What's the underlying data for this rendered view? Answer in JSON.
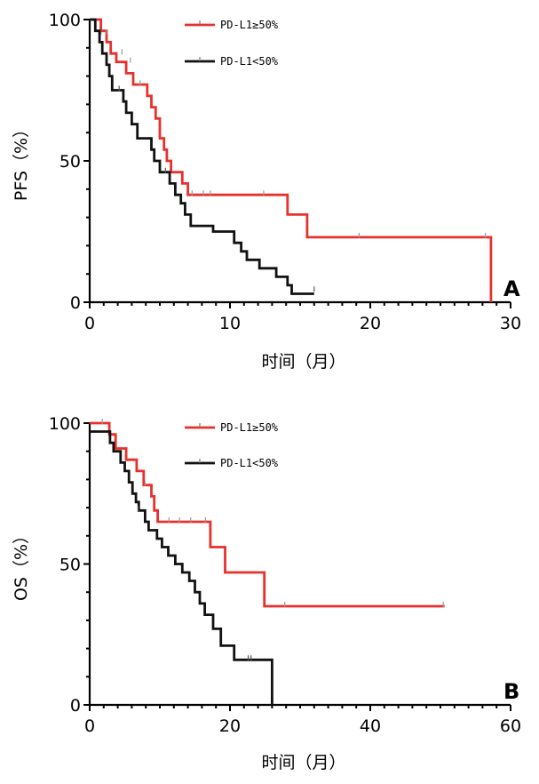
{
  "chart_data": [
    {
      "type": "line",
      "step": true,
      "panel_label": "A",
      "ylabel": "PFS（%）",
      "xlabel": "时间（月）",
      "xlim": [
        0,
        30
      ],
      "ylim": [
        0,
        100
      ],
      "xticks": [
        "0",
        "10",
        "20",
        "30"
      ],
      "yticks": [
        "0",
        "50",
        "100"
      ],
      "legend_position": "top-center",
      "series": [
        {
          "name": "PD-L1≥50%",
          "color": "#e8302c",
          "points": [
            [
              0,
              100
            ],
            [
              0.8,
              100
            ],
            [
              0.8,
              96
            ],
            [
              1.2,
              96
            ],
            [
              1.2,
              92
            ],
            [
              1.5,
              92
            ],
            [
              1.5,
              88
            ],
            [
              1.9,
              88
            ],
            [
              1.9,
              85
            ],
            [
              2.6,
              85
            ],
            [
              2.6,
              81
            ],
            [
              3.1,
              81
            ],
            [
              3.1,
              77
            ],
            [
              4.1,
              77
            ],
            [
              4.1,
              73
            ],
            [
              4.4,
              73
            ],
            [
              4.4,
              69
            ],
            [
              4.7,
              69
            ],
            [
              4.7,
              65
            ],
            [
              5.0,
              65
            ],
            [
              5.0,
              58
            ],
            [
              5.3,
              58
            ],
            [
              5.3,
              54
            ],
            [
              5.5,
              54
            ],
            [
              5.5,
              50
            ],
            [
              5.8,
              50
            ],
            [
              5.8,
              46
            ],
            [
              6.6,
              46
            ],
            [
              6.6,
              42
            ],
            [
              7.0,
              42
            ],
            [
              7.0,
              38
            ],
            [
              14.1,
              38
            ],
            [
              14.1,
              31
            ],
            [
              15.5,
              31
            ],
            [
              15.5,
              23
            ],
            [
              28.6,
              23
            ],
            [
              28.6,
              0
            ]
          ],
          "censors": [
            [
              1.2,
              95
            ],
            [
              2.3,
              88
            ],
            [
              2.9,
              85
            ],
            [
              3.6,
              77
            ],
            [
              7.3,
              38
            ],
            [
              8.1,
              38
            ],
            [
              8.6,
              38
            ],
            [
              12.4,
              38
            ],
            [
              19.2,
              23
            ],
            [
              28.2,
              23
            ]
          ]
        },
        {
          "name": "PD-L1<50%",
          "color": "#111111",
          "points": [
            [
              0,
              100
            ],
            [
              0.4,
              100
            ],
            [
              0.4,
              96
            ],
            [
              0.7,
              96
            ],
            [
              0.7,
              92
            ],
            [
              0.9,
              92
            ],
            [
              0.9,
              88
            ],
            [
              1.2,
              88
            ],
            [
              1.2,
              84
            ],
            [
              1.4,
              84
            ],
            [
              1.4,
              80
            ],
            [
              1.6,
              80
            ],
            [
              1.6,
              75
            ],
            [
              2.4,
              75
            ],
            [
              2.4,
              71
            ],
            [
              2.6,
              71
            ],
            [
              2.6,
              67
            ],
            [
              3.0,
              67
            ],
            [
              3.0,
              63
            ],
            [
              3.4,
              63
            ],
            [
              3.4,
              58
            ],
            [
              4.4,
              58
            ],
            [
              4.4,
              54
            ],
            [
              4.6,
              54
            ],
            [
              4.6,
              50
            ],
            [
              5.0,
              50
            ],
            [
              5.0,
              46
            ],
            [
              5.7,
              46
            ],
            [
              5.7,
              42
            ],
            [
              6.1,
              42
            ],
            [
              6.1,
              38
            ],
            [
              6.5,
              38
            ],
            [
              6.5,
              35
            ],
            [
              6.8,
              35
            ],
            [
              6.8,
              31
            ],
            [
              7.2,
              31
            ],
            [
              7.2,
              27
            ],
            [
              8.8,
              27
            ],
            [
              8.8,
              25
            ],
            [
              10.3,
              25
            ],
            [
              10.3,
              21
            ],
            [
              10.8,
              21
            ],
            [
              10.8,
              18
            ],
            [
              11.2,
              18
            ],
            [
              11.2,
              15
            ],
            [
              12.1,
              15
            ],
            [
              12.1,
              12
            ],
            [
              13.3,
              12
            ],
            [
              13.3,
              9
            ],
            [
              14.1,
              9
            ],
            [
              14.1,
              6
            ],
            [
              14.4,
              6
            ],
            [
              14.4,
              3
            ],
            [
              16.0,
              3
            ]
          ],
          "censors": [
            [
              0.8,
              95
            ],
            [
              2.1,
              75
            ],
            [
              5.4,
              46
            ],
            [
              16.0,
              4
            ]
          ]
        }
      ]
    },
    {
      "type": "line",
      "step": true,
      "panel_label": "B",
      "ylabel": "OS（%）",
      "xlabel": "时间（月）",
      "xlim": [
        0,
        60
      ],
      "ylim": [
        0,
        100
      ],
      "xticks": [
        "0",
        "20",
        "40",
        "60"
      ],
      "yticks": [
        "0",
        "50",
        "100"
      ],
      "legend_position": "top-center",
      "series": [
        {
          "name": "PD-L1≥50%",
          "color": "#e8302c",
          "points": [
            [
              0,
              100
            ],
            [
              2.8,
              100
            ],
            [
              2.8,
              96
            ],
            [
              3.7,
              96
            ],
            [
              3.7,
              91
            ],
            [
              5.2,
              91
            ],
            [
              5.2,
              87
            ],
            [
              6.7,
              87
            ],
            [
              6.7,
              83
            ],
            [
              7.7,
              83
            ],
            [
              7.7,
              78
            ],
            [
              8.8,
              78
            ],
            [
              8.8,
              74
            ],
            [
              9.2,
              74
            ],
            [
              9.2,
              69
            ],
            [
              9.7,
              69
            ],
            [
              9.7,
              65
            ],
            [
              17.2,
              65
            ],
            [
              17.2,
              56
            ],
            [
              19.3,
              56
            ],
            [
              19.3,
              47
            ],
            [
              24.9,
              47
            ],
            [
              24.9,
              35
            ],
            [
              50.6,
              35
            ]
          ],
          "censors": [
            [
              1.8,
              100
            ],
            [
              7.9,
              78
            ],
            [
              11.3,
              65
            ],
            [
              12.8,
              65
            ],
            [
              14.4,
              65
            ],
            [
              16.5,
              65
            ],
            [
              27.8,
              35
            ],
            [
              50.4,
              35
            ]
          ]
        },
        {
          "name": "PD-L1<50%",
          "color": "#111111",
          "points": [
            [
              0,
              97
            ],
            [
              2.9,
              97
            ],
            [
              2.9,
              93
            ],
            [
              3.4,
              93
            ],
            [
              3.4,
              90
            ],
            [
              4.4,
              90
            ],
            [
              4.4,
              86
            ],
            [
              5.0,
              86
            ],
            [
              5.0,
              83
            ],
            [
              5.6,
              83
            ],
            [
              5.6,
              79
            ],
            [
              6.1,
              79
            ],
            [
              6.1,
              75
            ],
            [
              6.6,
              75
            ],
            [
              6.6,
              72
            ],
            [
              7.0,
              72
            ],
            [
              7.0,
              69
            ],
            [
              7.9,
              69
            ],
            [
              7.9,
              65
            ],
            [
              8.4,
              65
            ],
            [
              8.4,
              62
            ],
            [
              9.6,
              62
            ],
            [
              9.6,
              59
            ],
            [
              10.3,
              59
            ],
            [
              10.3,
              56
            ],
            [
              11.2,
              56
            ],
            [
              11.2,
              53
            ],
            [
              12.2,
              53
            ],
            [
              12.2,
              50
            ],
            [
              13.2,
              50
            ],
            [
              13.2,
              47
            ],
            [
              14.2,
              47
            ],
            [
              14.2,
              44
            ],
            [
              15.0,
              44
            ],
            [
              15.0,
              40
            ],
            [
              15.7,
              40
            ],
            [
              15.7,
              36
            ],
            [
              16.4,
              36
            ],
            [
              16.4,
              32
            ],
            [
              17.6,
              32
            ],
            [
              17.6,
              27
            ],
            [
              18.7,
              27
            ],
            [
              18.7,
              21
            ],
            [
              20.6,
              21
            ],
            [
              20.6,
              16
            ],
            [
              26.0,
              16
            ],
            [
              26.0,
              0
            ]
          ],
          "censors": [
            [
              6.9,
              69
            ],
            [
              22.6,
              16
            ],
            [
              23.0,
              16
            ]
          ]
        }
      ]
    }
  ]
}
